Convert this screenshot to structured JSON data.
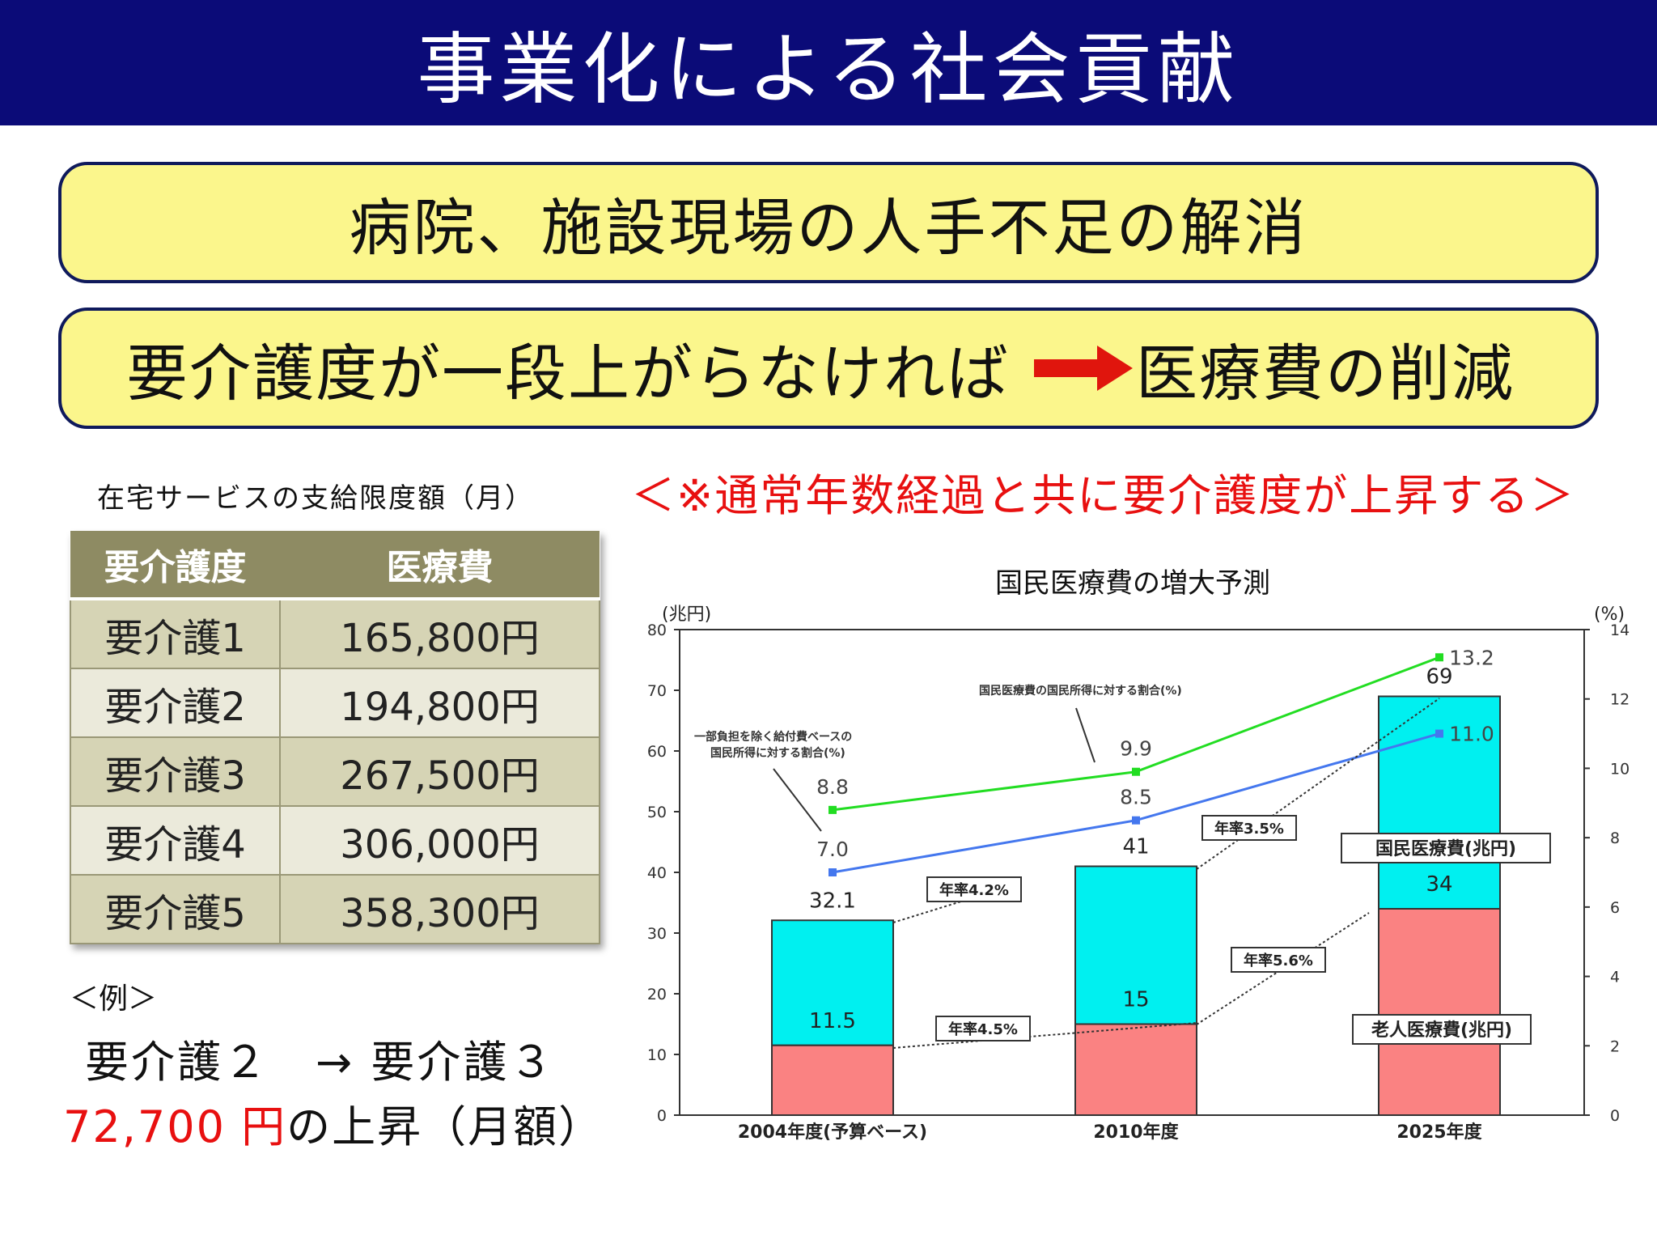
{
  "header": {
    "title": "事業化による社会貢献"
  },
  "banner1": {
    "text": "病院、施設現場の人手不足の解消"
  },
  "banner2": {
    "left": "要介護度が一段上がらなければ",
    "right": "医療費の削減"
  },
  "table": {
    "caption": "在宅サービスの支給限度額（月）",
    "headers": [
      "要介護度",
      "医療費"
    ],
    "rows": [
      [
        "要介護1",
        "165,800円"
      ],
      [
        "要介護2",
        "194,800円"
      ],
      [
        "要介護3",
        "267,500円"
      ],
      [
        "要介護4",
        "306,000円"
      ],
      [
        "要介護5",
        "358,300円"
      ]
    ]
  },
  "example": {
    "label": "＜例＞",
    "line1": "要介護２　→ 要介護３",
    "amount": "72,700 円",
    "suffix": "の上昇（月額）"
  },
  "note": "＜※通常年数経過と共に要介護度が上昇する＞",
  "colors": {
    "header_bg": "#0b0b78",
    "banner_bg": "#fbf68c",
    "arrow": "#e0150d",
    "bar_total": "#00f0f0",
    "bar_elderly": "#fa8282",
    "line_green": "#22dd22",
    "line_blue": "#4477ee",
    "accent_red": "#e81010"
  },
  "chart_data": {
    "type": "bar",
    "title": "国民医療費の増大予測",
    "left_unit": "(兆円)",
    "right_unit": "(%)",
    "ylim": [
      0,
      80
    ],
    "y2lim": [
      0,
      14
    ],
    "yticks": [
      "0",
      "10",
      "20",
      "30",
      "40",
      "50",
      "60",
      "70",
      "80"
    ],
    "y2ticks": [
      "0",
      "2",
      "4",
      "6",
      "8",
      "10",
      "12",
      "14"
    ],
    "categories": [
      "2004年度(予算ベース)",
      "2010年度",
      "2025年度"
    ],
    "stacked_bars": [
      {
        "name": "老人医療費(兆円)",
        "values": [
          11.5,
          15,
          34
        ],
        "labels": [
          "11.5",
          "15",
          "34"
        ]
      },
      {
        "name": "国民医療費(兆円)",
        "values": [
          32.1,
          41,
          69
        ],
        "labels": [
          "32.1",
          "41",
          "69"
        ]
      }
    ],
    "lines": [
      {
        "name": "国民医療費の国民所得に対する割合(%)",
        "values": [
          8.8,
          9.9,
          13.2
        ],
        "labels": [
          "8.8",
          "9.9",
          "13.2"
        ]
      },
      {
        "name": "一部負担を除く給付費ベースの国民所得に対する割合(%)",
        "values": [
          7.0,
          8.5,
          11.0
        ],
        "labels": [
          "7.0",
          "8.5",
          "11.0"
        ]
      }
    ],
    "line_label_green": "国民医療費の国民所得に対する割合(%)",
    "line_label_blue": [
      "一部負担を除く給付費ベースの",
      "国民所得に対する割合(%)"
    ],
    "growth_labels": [
      "年率4.2%",
      "年率3.5%",
      "年率4.5%",
      "年率5.6%"
    ]
  }
}
